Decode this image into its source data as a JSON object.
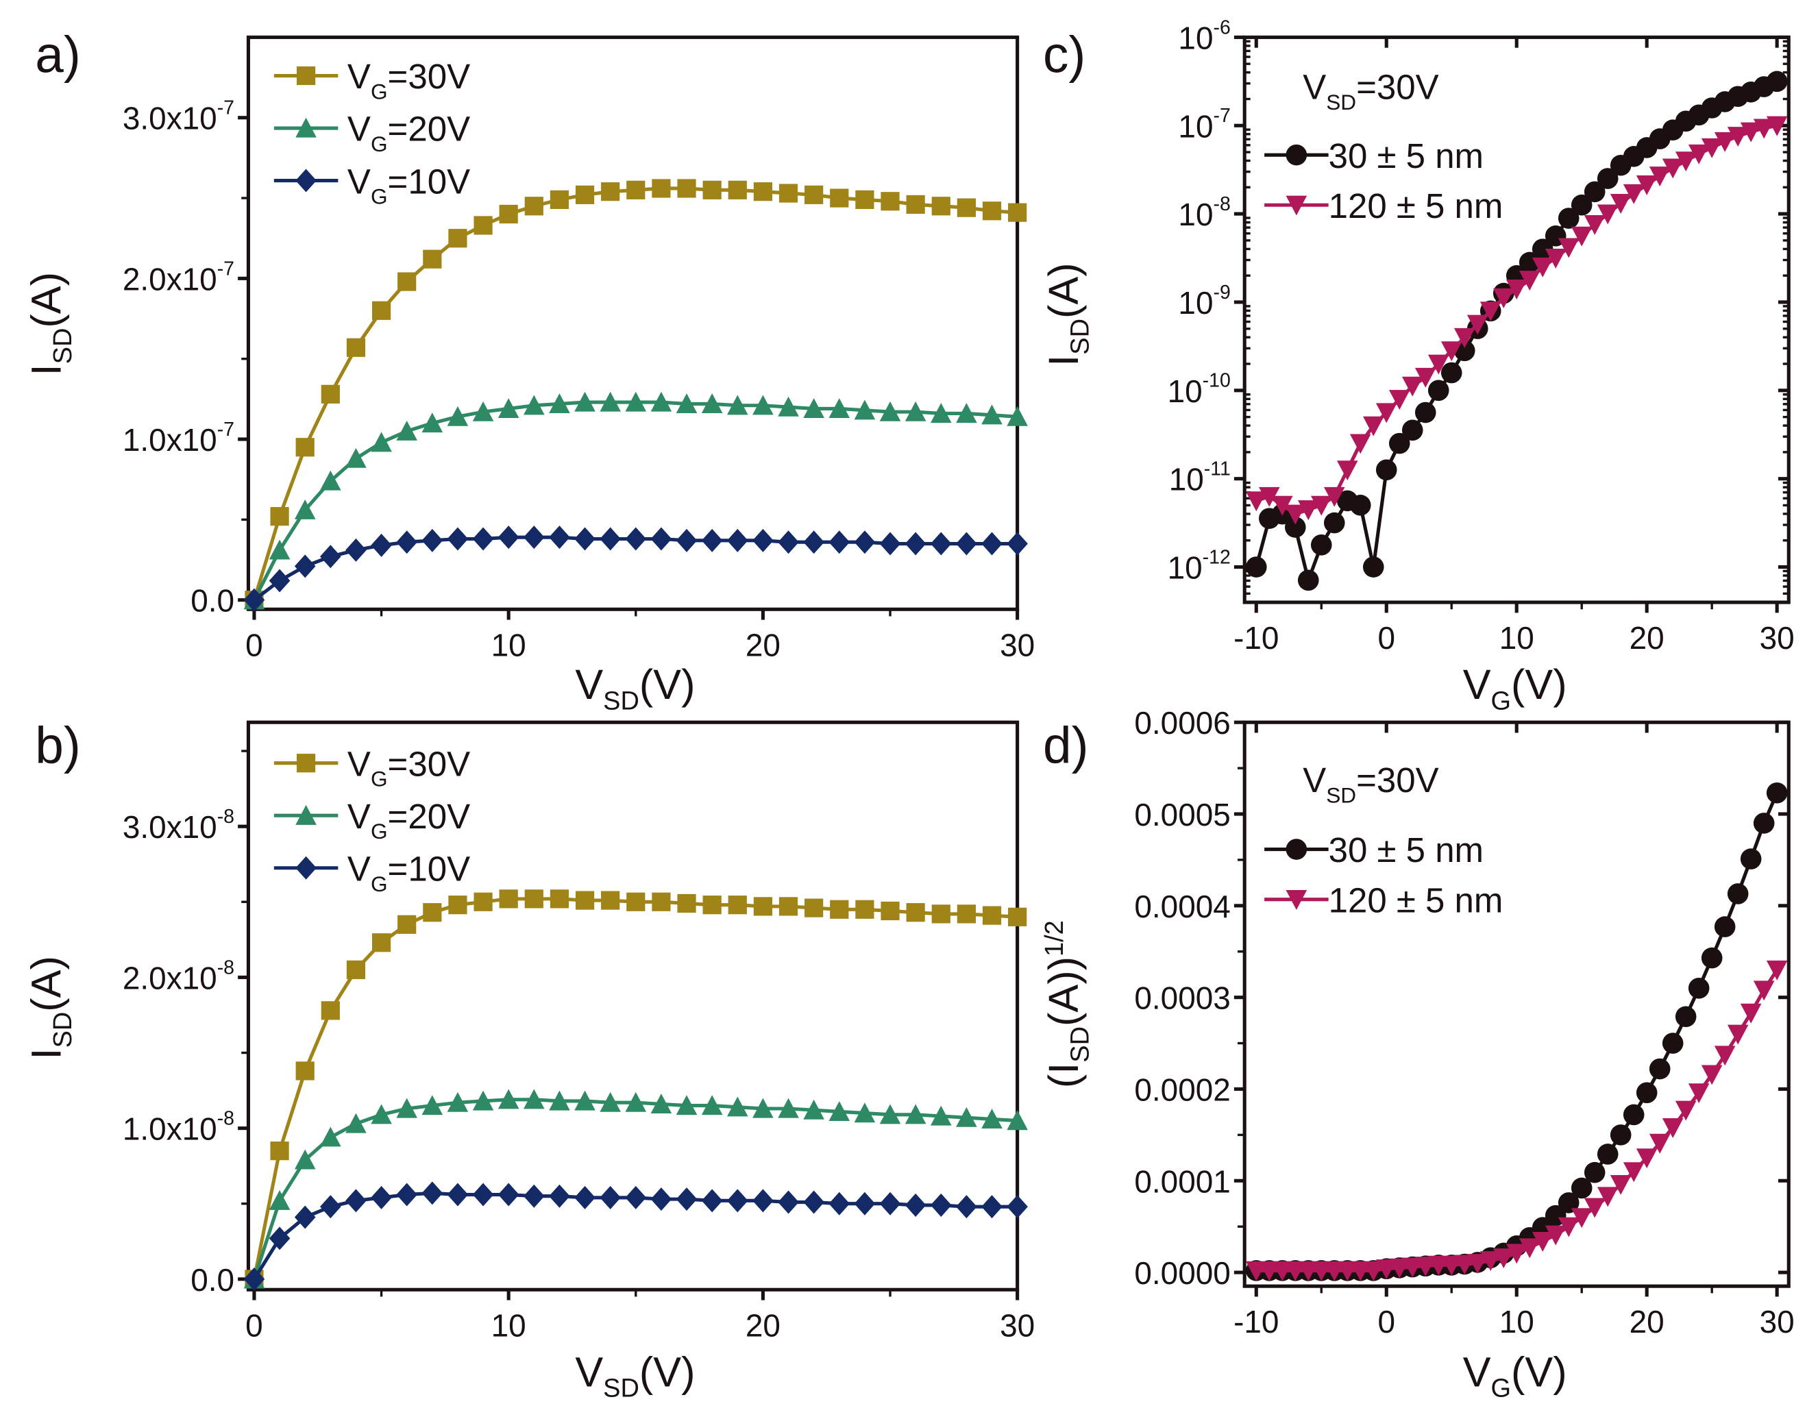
{
  "chart_data": [
    {
      "panel": "a)",
      "type": "line",
      "y_multiplier": "1e-7",
      "xlabel": [
        {
          "t": "V"
        },
        {
          "t": "SD",
          "sub": true
        },
        {
          "t": "(V)"
        }
      ],
      "ylabel": [
        {
          "t": "I"
        },
        {
          "t": "SD",
          "sub": true
        },
        {
          "t": "(A)"
        }
      ],
      "xlim": [
        -0.23,
        30
      ],
      "ylim": [
        -0.058,
        3.5
      ],
      "xticks": [
        0,
        10,
        20,
        30
      ],
      "xtick_labels": [
        [
          {
            "t": "0"
          }
        ],
        [
          {
            "t": "10"
          }
        ],
        [
          {
            "t": "20"
          }
        ],
        [
          {
            "t": "30"
          }
        ]
      ],
      "yticks": [
        0,
        1,
        2,
        3
      ],
      "ytick_labels": [
        [
          {
            "t": "0.0"
          }
        ],
        [
          {
            "t": "1.0x10"
          },
          {
            "t": "-7",
            "sup": true
          }
        ],
        [
          {
            "t": "2.0x10"
          },
          {
            "t": "-7",
            "sup": true
          }
        ],
        [
          {
            "t": "3.0x10"
          },
          {
            "t": "-7",
            "sup": true
          }
        ]
      ],
      "x_min": 0,
      "x_max": 30,
      "x_step": 1,
      "series": [
        {
          "name": [
            {
              "t": "V"
            },
            {
              "t": "G",
              "sub": true
            },
            {
              "t": "=30V"
            }
          ],
          "color": "#a08418",
          "marker": "square",
          "y": [
            0,
            0.52,
            0.95,
            1.28,
            1.57,
            1.8,
            1.98,
            2.12,
            2.25,
            2.33,
            2.4,
            2.45,
            2.49,
            2.52,
            2.54,
            2.55,
            2.56,
            2.56,
            2.55,
            2.55,
            2.54,
            2.53,
            2.52,
            2.5,
            2.49,
            2.48,
            2.46,
            2.45,
            2.44,
            2.42,
            2.41
          ]
        },
        {
          "name": [
            {
              "t": "V"
            },
            {
              "t": "G",
              "sub": true
            },
            {
              "t": "=20V"
            }
          ],
          "color": "#2e8a64",
          "marker": "triangle-up",
          "y": [
            0,
            0.31,
            0.56,
            0.74,
            0.88,
            0.98,
            1.05,
            1.1,
            1.14,
            1.17,
            1.19,
            1.21,
            1.22,
            1.23,
            1.23,
            1.23,
            1.23,
            1.22,
            1.22,
            1.21,
            1.21,
            1.2,
            1.19,
            1.19,
            1.18,
            1.17,
            1.17,
            1.16,
            1.16,
            1.15,
            1.14
          ]
        },
        {
          "name": [
            {
              "t": "V"
            },
            {
              "t": "G",
              "sub": true
            },
            {
              "t": "=10V"
            }
          ],
          "color": "#142a66",
          "marker": "diamond",
          "y": [
            0,
            0.12,
            0.21,
            0.27,
            0.31,
            0.34,
            0.36,
            0.37,
            0.38,
            0.38,
            0.39,
            0.39,
            0.39,
            0.38,
            0.38,
            0.38,
            0.38,
            0.37,
            0.37,
            0.37,
            0.37,
            0.36,
            0.36,
            0.36,
            0.36,
            0.35,
            0.35,
            0.35,
            0.35,
            0.35,
            0.35
          ]
        }
      ]
    },
    {
      "panel": "b)",
      "type": "line",
      "y_multiplier": "1e-8",
      "xlabel": [
        {
          "t": "V"
        },
        {
          "t": "SD",
          "sub": true
        },
        {
          "t": "(V)"
        }
      ],
      "ylabel": [
        {
          "t": "I"
        },
        {
          "t": "SD",
          "sub": true
        },
        {
          "t": "(A)"
        }
      ],
      "xlim": [
        -0.23,
        30
      ],
      "ylim": [
        -0.07,
        3.69
      ],
      "xticks": [
        0,
        10,
        20,
        30
      ],
      "xtick_labels": [
        [
          {
            "t": "0"
          }
        ],
        [
          {
            "t": "10"
          }
        ],
        [
          {
            "t": "20"
          }
        ],
        [
          {
            "t": "30"
          }
        ]
      ],
      "yticks": [
        0,
        1,
        2,
        3
      ],
      "ytick_labels": [
        [
          {
            "t": "0.0"
          }
        ],
        [
          {
            "t": "1.0x10"
          },
          {
            "t": "-8",
            "sup": true
          }
        ],
        [
          {
            "t": "2.0x10"
          },
          {
            "t": "-8",
            "sup": true
          }
        ],
        [
          {
            "t": "3.0x10"
          },
          {
            "t": "-8",
            "sup": true
          }
        ]
      ],
      "x_min": 0,
      "x_max": 30,
      "x_step": 1,
      "series": [
        {
          "name": [
            {
              "t": "V"
            },
            {
              "t": "G",
              "sub": true
            },
            {
              "t": "=30V"
            }
          ],
          "color": "#a08418",
          "marker": "square",
          "y": [
            0,
            0.85,
            1.38,
            1.78,
            2.05,
            2.23,
            2.35,
            2.43,
            2.48,
            2.5,
            2.52,
            2.52,
            2.52,
            2.51,
            2.51,
            2.5,
            2.5,
            2.49,
            2.48,
            2.48,
            2.47,
            2.47,
            2.46,
            2.45,
            2.45,
            2.44,
            2.43,
            2.42,
            2.42,
            2.41,
            2.4
          ]
        },
        {
          "name": [
            {
              "t": "V"
            },
            {
              "t": "G",
              "sub": true
            },
            {
              "t": "=20V"
            }
          ],
          "color": "#2e8a64",
          "marker": "triangle-up",
          "y": [
            0,
            0.52,
            0.79,
            0.94,
            1.03,
            1.09,
            1.13,
            1.15,
            1.17,
            1.18,
            1.19,
            1.19,
            1.18,
            1.18,
            1.17,
            1.17,
            1.16,
            1.15,
            1.15,
            1.14,
            1.13,
            1.13,
            1.12,
            1.11,
            1.1,
            1.09,
            1.09,
            1.08,
            1.07,
            1.06,
            1.05
          ]
        },
        {
          "name": [
            {
              "t": "V"
            },
            {
              "t": "G",
              "sub": true
            },
            {
              "t": "=10V"
            }
          ],
          "color": "#142a66",
          "marker": "diamond",
          "y": [
            0,
            0.27,
            0.41,
            0.48,
            0.52,
            0.54,
            0.56,
            0.57,
            0.56,
            0.56,
            0.56,
            0.55,
            0.55,
            0.54,
            0.54,
            0.54,
            0.53,
            0.53,
            0.52,
            0.52,
            0.52,
            0.51,
            0.51,
            0.5,
            0.5,
            0.5,
            0.49,
            0.49,
            0.48,
            0.48,
            0.48
          ]
        }
      ]
    },
    {
      "panel": "c)",
      "type": "scatter",
      "y_scale": "log10",
      "annotation": [
        {
          "t": "V"
        },
        {
          "t": "SD",
          "sub": true
        },
        {
          "t": "=30V"
        }
      ],
      "xlabel": [
        {
          "t": "V"
        },
        {
          "t": "G",
          "sub": true
        },
        {
          "t": "(V)"
        }
      ],
      "ylabel": [
        {
          "t": "I"
        },
        {
          "t": "SD",
          "sub": true
        },
        {
          "t": "(A)"
        }
      ],
      "xlim": [
        -10.9,
        30.9
      ],
      "ylim": [
        -12.4,
        -6
      ],
      "xticks": [
        -10,
        0,
        10,
        20,
        30
      ],
      "xtick_labels": [
        [
          {
            "t": "-10"
          }
        ],
        [
          {
            "t": "0"
          }
        ],
        [
          {
            "t": "10"
          }
        ],
        [
          {
            "t": "20"
          }
        ],
        [
          {
            "t": "30"
          }
        ]
      ],
      "yticks": [
        -12,
        -11,
        -10,
        -9,
        -8,
        -7,
        -6
      ],
      "ytick_labels": [
        [
          {
            "t": "10"
          },
          {
            "t": "-12",
            "sup": true
          }
        ],
        [
          {
            "t": "10"
          },
          {
            "t": "-11",
            "sup": true
          }
        ],
        [
          {
            "t": "10"
          },
          {
            "t": "-10",
            "sup": true
          }
        ],
        [
          {
            "t": "10"
          },
          {
            "t": "-9",
            "sup": true
          }
        ],
        [
          {
            "t": "10"
          },
          {
            "t": "-8",
            "sup": true
          }
        ],
        [
          {
            "t": "10"
          },
          {
            "t": "-7",
            "sup": true
          }
        ],
        [
          {
            "t": "10"
          },
          {
            "t": "-6",
            "sup": true
          }
        ]
      ],
      "x_min": -10,
      "x_max": 30,
      "x_step": 1,
      "series": [
        {
          "name": [
            {
              "t": "30 ± 5 nm"
            }
          ],
          "color": "#1a1010",
          "marker": "circle",
          "log10_y": [
            -12.0,
            -11.45,
            -11.4,
            -11.55,
            -12.15,
            -11.75,
            -11.5,
            -11.25,
            -11.3,
            -12.0,
            -10.9,
            -10.6,
            -10.45,
            -10.25,
            -10.0,
            -9.8,
            -9.55,
            -9.3,
            -9.1,
            -8.9,
            -8.7,
            -8.55,
            -8.4,
            -8.25,
            -8.05,
            -7.9,
            -7.75,
            -7.6,
            -7.45,
            -7.35,
            -7.25,
            -7.15,
            -7.05,
            -6.95,
            -6.88,
            -6.8,
            -6.73,
            -6.67,
            -6.62,
            -6.56,
            -6.5
          ]
        },
        {
          "name": [
            {
              "t": "120 ± 5 nm"
            }
          ],
          "color": "#b0185a",
          "marker": "triangle-down",
          "log10_y": [
            -11.25,
            -11.2,
            -11.3,
            -11.4,
            -11.35,
            -11.3,
            -11.2,
            -10.9,
            -10.6,
            -10.4,
            -10.25,
            -10.1,
            -9.95,
            -9.85,
            -9.7,
            -9.55,
            -9.4,
            -9.25,
            -9.1,
            -8.95,
            -8.85,
            -8.75,
            -8.6,
            -8.5,
            -8.38,
            -8.25,
            -8.12,
            -8.0,
            -7.88,
            -7.77,
            -7.67,
            -7.57,
            -7.48,
            -7.4,
            -7.32,
            -7.25,
            -7.18,
            -7.12,
            -7.07,
            -7.03,
            -7.0
          ]
        }
      ]
    },
    {
      "panel": "d)",
      "type": "scatter",
      "y_multiplier": "1e-4",
      "annotation": [
        {
          "t": "V"
        },
        {
          "t": "SD",
          "sub": true
        },
        {
          "t": "=30V"
        }
      ],
      "xlabel": [
        {
          "t": "V"
        },
        {
          "t": "G",
          "sub": true
        },
        {
          "t": "(V)"
        }
      ],
      "ylabel": [
        {
          "t": "(I"
        },
        {
          "t": "SD",
          "sub": true
        },
        {
          "t": "(A))"
        },
        {
          "t": "1/2",
          "sup": true
        }
      ],
      "xlim": [
        -10.9,
        30.9
      ],
      "ylim": [
        -0.15,
        6.0
      ],
      "xticks": [
        -10,
        0,
        10,
        20,
        30
      ],
      "xtick_labels": [
        [
          {
            "t": "-10"
          }
        ],
        [
          {
            "t": "0"
          }
        ],
        [
          {
            "t": "10"
          }
        ],
        [
          {
            "t": "20"
          }
        ],
        [
          {
            "t": "30"
          }
        ]
      ],
      "yticks": [
        0,
        1,
        2,
        3,
        4,
        5,
        6
      ],
      "ytick_labels": [
        [
          {
            "t": "0.0000"
          }
        ],
        [
          {
            "t": "0.0001"
          }
        ],
        [
          {
            "t": "0.0002"
          }
        ],
        [
          {
            "t": "0.0003"
          }
        ],
        [
          {
            "t": "0.0004"
          }
        ],
        [
          {
            "t": "0.0005"
          }
        ],
        [
          {
            "t": "0.0006"
          }
        ]
      ],
      "x_min": -10,
      "x_max": 30,
      "x_step": 1,
      "series": [
        {
          "name": [
            {
              "t": "30 ± 5 nm"
            }
          ],
          "color": "#1a1010",
          "marker": "circle",
          "y": [
            0.02,
            0.02,
            0.02,
            0.02,
            0.02,
            0.02,
            0.02,
            0.02,
            0.02,
            0.02,
            0.04,
            0.05,
            0.06,
            0.07,
            0.08,
            0.08,
            0.09,
            0.11,
            0.16,
            0.21,
            0.29,
            0.38,
            0.49,
            0.62,
            0.76,
            0.92,
            1.09,
            1.29,
            1.5,
            1.72,
            1.96,
            2.22,
            2.5,
            2.79,
            3.1,
            3.43,
            3.77,
            4.13,
            4.51,
            4.9,
            5.23
          ]
        },
        {
          "name": [
            {
              "t": "120 ± 5 nm"
            }
          ],
          "color": "#b0185a",
          "marker": "triangle-down",
          "y": [
            0.02,
            0.02,
            0.02,
            0.02,
            0.02,
            0.02,
            0.02,
            0.02,
            0.02,
            0.02,
            0.04,
            0.05,
            0.06,
            0.07,
            0.08,
            0.08,
            0.09,
            0.1,
            0.13,
            0.16,
            0.21,
            0.27,
            0.34,
            0.41,
            0.5,
            0.6,
            0.71,
            0.83,
            0.96,
            1.1,
            1.25,
            1.41,
            1.58,
            1.77,
            1.96,
            2.16,
            2.37,
            2.6,
            2.83,
            3.08,
            3.3
          ]
        }
      ]
    }
  ]
}
